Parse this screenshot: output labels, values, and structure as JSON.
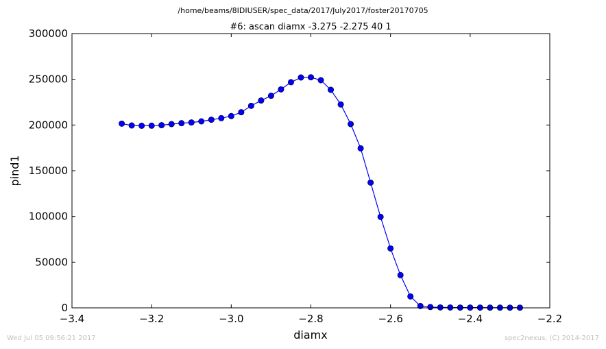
{
  "figure": {
    "suptitle": "/home/beams/8IDIUSER/spec_data/2017/July2017/foster20170705",
    "footer_left": "Wed Jul 05 09:56:21 2017",
    "footer_right": "spec2nexus, (C) 2014-2017"
  },
  "chart_data": {
    "type": "line",
    "title": "#6: ascan  diamx -3.275 -2.275  40 1",
    "xlabel": "diamx",
    "ylabel": "pind1",
    "xlim": [
      -3.4,
      -2.2
    ],
    "ylim": [
      0,
      300000
    ],
    "xticks": [
      -3.4,
      -3.2,
      -3.0,
      -2.8,
      -2.6,
      -2.4,
      -2.2
    ],
    "xtick_labels": [
      "−3.4",
      "−3.2",
      "−3.0",
      "−2.8",
      "−2.6",
      "−2.4",
      "−2.2"
    ],
    "yticks": [
      0,
      50000,
      100000,
      150000,
      200000,
      250000,
      300000
    ],
    "ytick_labels": [
      "0",
      "50000",
      "100000",
      "150000",
      "200000",
      "250000",
      "300000"
    ],
    "grid": false,
    "line_color": "#0000ff",
    "marker": "circle",
    "series": [
      {
        "x": [
          -3.275,
          -3.25,
          -3.225,
          -3.2,
          -3.175,
          -3.15,
          -3.125,
          -3.1,
          -3.075,
          -3.05,
          -3.025,
          -3.0,
          -2.975,
          -2.95,
          -2.925,
          -2.9,
          -2.875,
          -2.85,
          -2.825,
          -2.8,
          -2.775,
          -2.75,
          -2.725,
          -2.7,
          -2.675,
          -2.65,
          -2.625,
          -2.6,
          -2.575,
          -2.55,
          -2.525,
          -2.5,
          -2.475,
          -2.45,
          -2.425,
          -2.4,
          -2.375,
          -2.35,
          -2.325,
          -2.3,
          -2.275
        ],
        "values": [
          201500,
          199500,
          199200,
          199300,
          199800,
          201000,
          202000,
          202800,
          204000,
          205800,
          207500,
          209800,
          214000,
          221000,
          226800,
          232000,
          239000,
          246800,
          252000,
          252200,
          249000,
          238500,
          222500,
          201000,
          174500,
          137000,
          99500,
          65000,
          35800,
          12500,
          2000,
          900,
          500,
          400,
          300,
          300,
          300,
          250,
          250,
          200,
          200
        ]
      }
    ]
  }
}
